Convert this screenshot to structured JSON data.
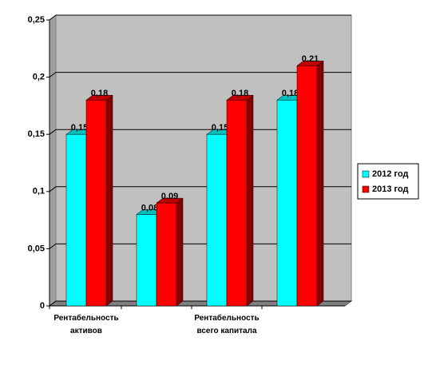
{
  "chart_data": {
    "type": "bar3d",
    "categories": [
      "Рентабельность активов",
      null,
      "Рентабельность всего капитала",
      null
    ],
    "series": [
      {
        "name": "2012 год",
        "color": "#00ffff",
        "values": [
          0.15,
          0.08,
          0.15,
          0.18
        ],
        "value_labels": [
          "0,15",
          "0,08",
          "0,15",
          "0,18"
        ]
      },
      {
        "name": "2013 год",
        "color": "#ff0000",
        "values": [
          0.18,
          0.09,
          0.18,
          0.21
        ],
        "value_labels": [
          "0,18",
          "0,09",
          "0,18",
          "0,21"
        ]
      }
    ],
    "ylim": [
      0,
      0.25
    ],
    "yticks": [
      0,
      {
        "value": 0.05,
        "label": "0,05"
      },
      {
        "value": 0.1,
        "label": "0,1"
      },
      {
        "value": 0.15,
        "label": "0,15"
      },
      {
        "value": 0.2,
        "label": "0,2"
      },
      {
        "value": 0.25,
        "label": "0,25"
      }
    ],
    "grid": true,
    "legend": "right"
  }
}
